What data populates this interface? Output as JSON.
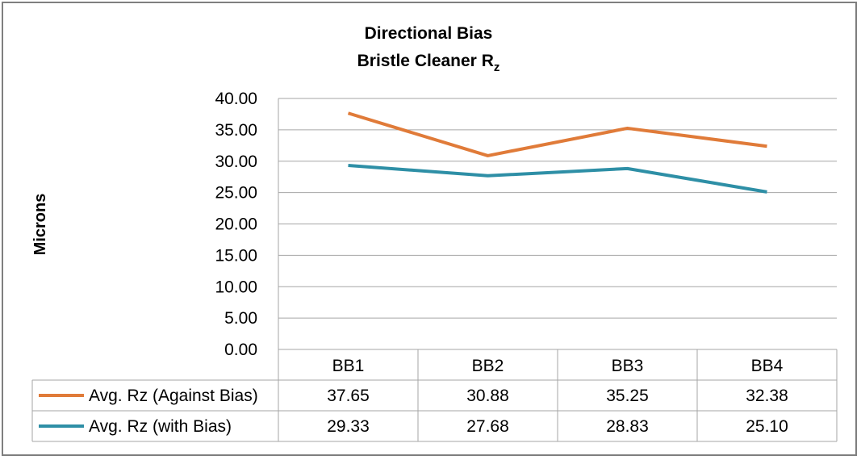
{
  "chart_data": {
    "type": "line",
    "title": "Directional Bias",
    "subtitle_main": "Bristle Cleaner R",
    "subtitle_sub": "z",
    "xlabel": "",
    "ylabel": "Microns",
    "ylim": [
      0,
      40
    ],
    "yticks": [
      "0.00",
      "5.00",
      "10.00",
      "15.00",
      "20.00",
      "25.00",
      "30.00",
      "35.00",
      "40.00"
    ],
    "grid": true,
    "legend": "data-table",
    "categories": [
      "BB1",
      "BB2",
      "BB3",
      "BB4"
    ],
    "series": [
      {
        "name": "Avg. Rz (Against Bias)",
        "color": "#e07b39",
        "values": [
          37.65,
          30.88,
          35.25,
          32.38
        ],
        "labels": [
          "37.65",
          "30.88",
          "35.25",
          "32.38"
        ]
      },
      {
        "name": "Avg. Rz (with Bias)",
        "color": "#2e8fa6",
        "values": [
          29.33,
          27.68,
          28.83,
          25.1
        ],
        "labels": [
          "29.33",
          "27.68",
          "28.83",
          "25.10"
        ]
      }
    ]
  }
}
